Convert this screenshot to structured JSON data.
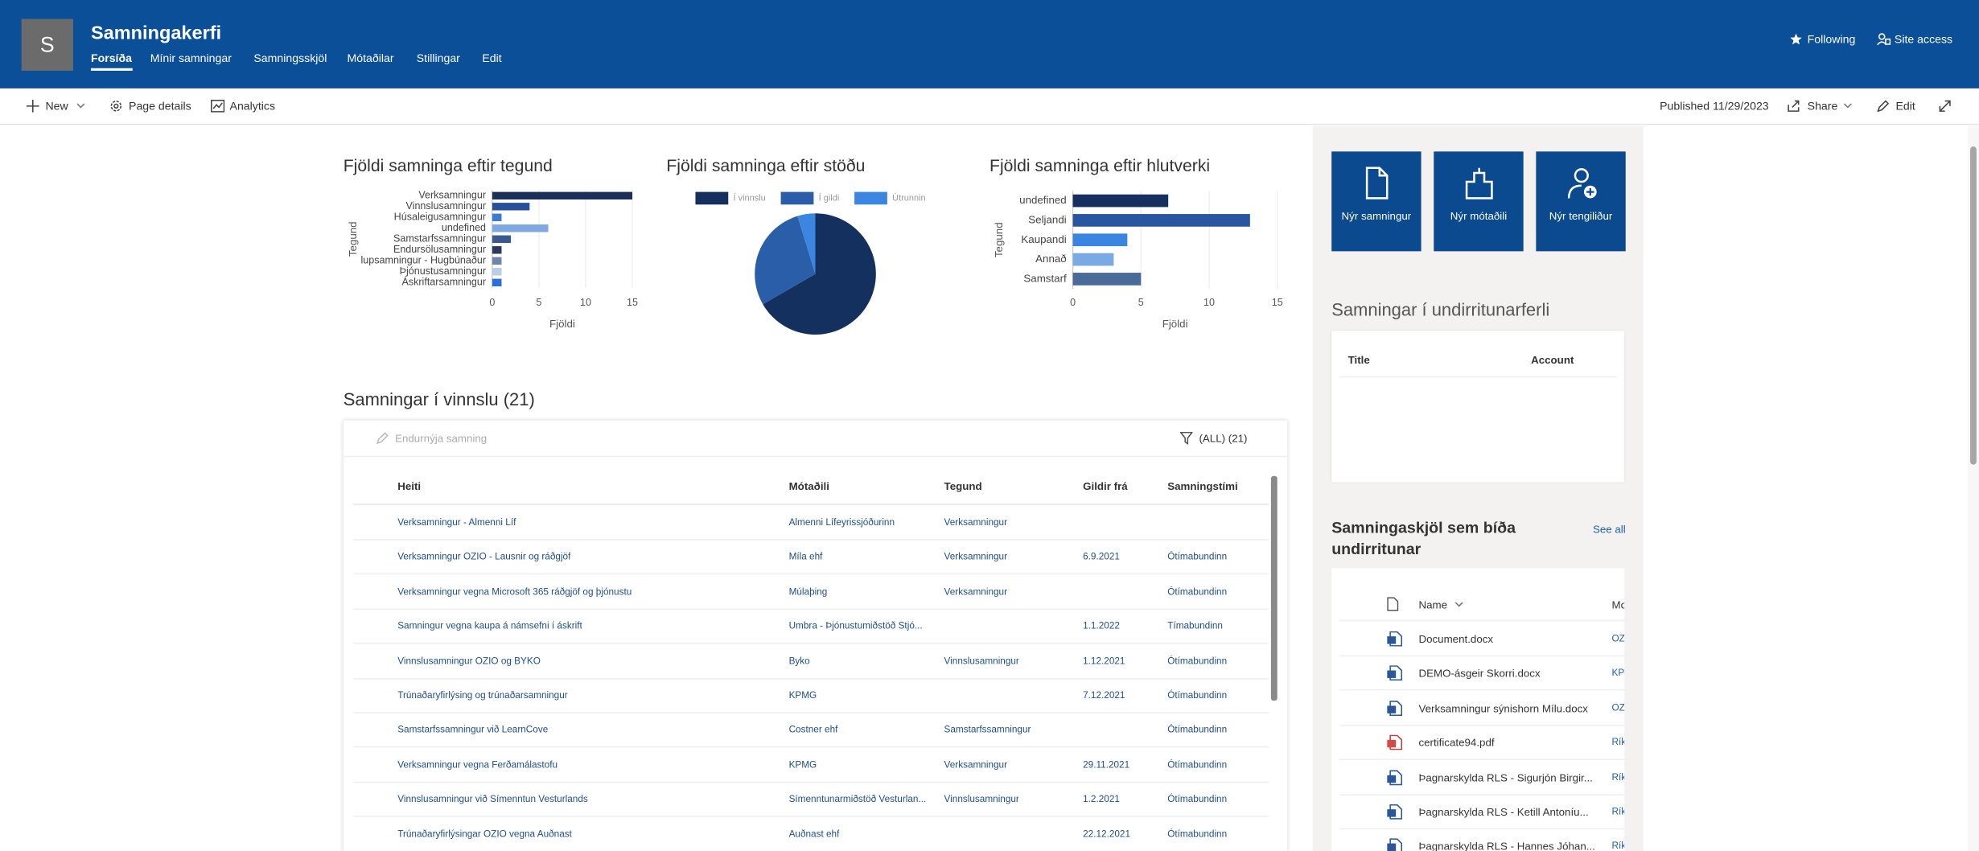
{
  "header": {
    "site_letter": "S",
    "site_title": "Samningakerfi",
    "nav": [
      "Forsíða",
      "Mínir samningar",
      "Samningsskjöl",
      "Mótaðilar",
      "Stillingar",
      "Edit"
    ],
    "actions": [
      "Following",
      "Site access"
    ]
  },
  "toolbar": {
    "items": [
      "New",
      "Page details",
      "Analytics"
    ],
    "published": "Published 11/29/2023",
    "actions": [
      "Share",
      "Edit"
    ]
  },
  "chart_data": [
    {
      "type": "bar",
      "orientation": "horizontal",
      "title": "Fjöldi samninga eftir tegund",
      "categories": [
        "Verksamningur",
        "Vinnslusamningur",
        "Húsaleigusamningur",
        "undefined",
        "Samstarfssamningur",
        "Endursölusamningur",
        "lupsamningur - Hugbúnaður",
        "Þjónustusamningur",
        "Áskriftarsamningur"
      ],
      "values": [
        15,
        4,
        1,
        6,
        2,
        1,
        1,
        1,
        1
      ],
      "colors": [
        "#1a2f5a",
        "#2a4f9a",
        "#3a7bd5",
        "#7fa8e0",
        "#3a5a8e",
        "#2a3a5a",
        "#6f86a8",
        "#b7cde8",
        "#2d6fd8"
      ],
      "xlim": [
        0,
        15
      ],
      "xticks": [
        0,
        5,
        10,
        15
      ],
      "xlabel": "Fjöldi",
      "ylabel": "Tegund",
      "grid": true
    },
    {
      "type": "pie",
      "title": "Fjöldi samninga eftir stöðu",
      "categories": [
        "Í vinnslu",
        "Í gildi",
        "Útrunnin"
      ],
      "values": [
        14,
        6,
        1
      ],
      "colors": [
        "#14305e",
        "#2b5ea8",
        "#3a86e0"
      ],
      "legend": "top"
    },
    {
      "type": "bar",
      "orientation": "horizontal",
      "title": "Fjöldi samninga eftir hlutverki",
      "categories": [
        "undefined",
        "Seljandi",
        "Kaupandi",
        "Annað",
        "Samstarf"
      ],
      "values": [
        7,
        13,
        4,
        3,
        5
      ],
      "colors": [
        "#15305e",
        "#2a55a0",
        "#3a85e0",
        "#7aaae4",
        "#4a6a9a"
      ],
      "xlim": [
        0,
        15
      ],
      "xticks": [
        0,
        5,
        10,
        15
      ],
      "xlabel": "Fjöldi",
      "ylabel": "Tegund",
      "grid": true
    }
  ],
  "contracts": {
    "title": "Samningar í vinnslu (21)",
    "command": "Endurnýja samning",
    "filter": "(ALL) (21)",
    "columns": [
      "Heiti",
      "Mótaðili",
      "Tegund",
      "Gildir frá",
      "Samningstími"
    ],
    "rows": [
      [
        "Verksamningur - Almenni Líf",
        "Almenni Lífeyrissjóðurinn",
        "Verksamningur",
        null,
        null
      ],
      [
        "Verksamningur OZIO - Lausnir og ráðgjöf",
        "Míla ehf",
        "Verksamningur",
        "6.9.2021",
        "Ótímabundinn"
      ],
      [
        "Verksamningur vegna Microsoft 365 ráðgjöf og þjónustu",
        "Múlaþing",
        "Verksamningur",
        null,
        "Ótímabundinn"
      ],
      [
        "Samningur vegna kaupa á námsefni í áskrift",
        "Umbra - Þjónustumiðstöð Stjó...",
        null,
        "1.1.2022",
        "Tímabundinn"
      ],
      [
        "Vinnslusamningur OZIO og BYKO",
        "Byko",
        "Vinnslusamningur",
        "1.12.2021",
        "Ótímabundinn"
      ],
      [
        "Trúnaðaryfirlýsing og trúnaðarsamningur",
        "KPMG",
        null,
        "7.12.2021",
        "Ótímabundinn"
      ],
      [
        "Samstarfssamningur við LearnCove",
        "Costner ehf",
        "Samstarfssamningur",
        null,
        "Ótímabundinn"
      ],
      [
        "Verksamningur vegna Ferðamálastofu",
        "KPMG",
        "Verksamningur",
        "29.11.2021",
        "Ótímabundinn"
      ],
      [
        "Vinnslusamningur við Símenntun Vesturlands",
        "Símenntunarmiðstöð Vesturlan...",
        "Vinnslusamningur",
        "1.2.2021",
        "Ótímabundinn"
      ],
      [
        "Trúnaðaryfirlýsingar OZIO vegna Auðnast",
        "Auðnast ehf",
        null,
        "22.12.2021",
        "Ótímabundinn"
      ]
    ]
  },
  "tiles": [
    "Nýr samningur",
    "Nýr mótaðili",
    "Nýr tengiliður"
  ],
  "signing": {
    "title": "Samningar í undirritunarferli",
    "columns": [
      "Title",
      "Account"
    ]
  },
  "documents": {
    "title": "Samningaskjöl sem bíða undirritunar",
    "see_all": "See all",
    "columns": [
      "Name",
      "Mo"
    ],
    "rows": [
      [
        "Document.docx",
        "OZ"
      ],
      [
        "DEMO-ásgeir Skorri.docx",
        "KPI"
      ],
      [
        "Verksamningur sýnishorn Mílu.docx",
        "OZ"
      ],
      [
        "certificate94.pdf",
        "Rík"
      ],
      [
        "Þagnarskylda RLS - Sigurjón Birgir...",
        "Rík"
      ],
      [
        "Þagnarskylda RLS - Ketill Antoníu...",
        "Rík"
      ],
      [
        "Þagnarskylda RLS - Hannes Jóhan...",
        "Rík"
      ]
    ]
  }
}
